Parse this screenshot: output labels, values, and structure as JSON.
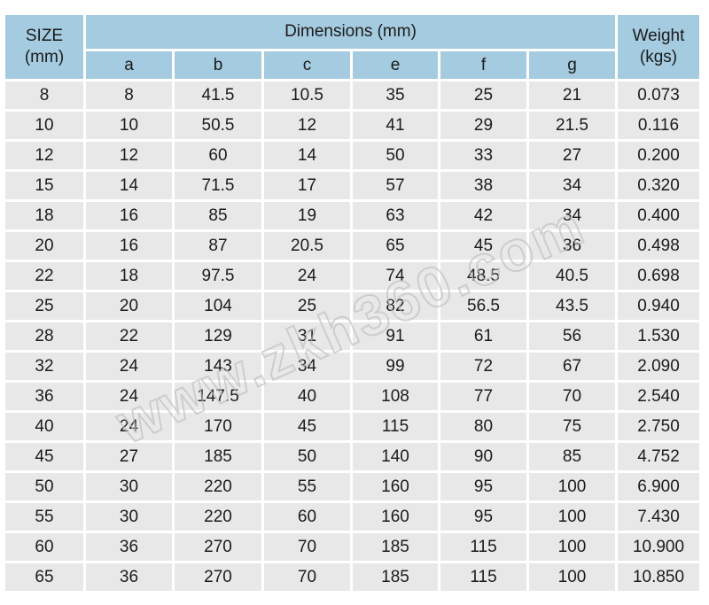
{
  "colors": {
    "header_bg": "#a4cbdf",
    "row_bg": "#e8e8e8",
    "text": "#1b1b1b",
    "watermark_stroke": "#bfbfbf",
    "gap": "#ffffff"
  },
  "watermark": {
    "text": "www.zkh360.com"
  },
  "table": {
    "header": {
      "size_line1": "SIZE",
      "size_line2": "(mm)",
      "dimensions_label": "Dimensions (mm)",
      "weight_line1": "Weight",
      "weight_line2": "(kgs)",
      "sub_columns": [
        "a",
        "b",
        "c",
        "e",
        "f",
        "g"
      ]
    },
    "rows": [
      [
        "8",
        "8",
        "41.5",
        "10.5",
        "35",
        "25",
        "21",
        "0.073"
      ],
      [
        "10",
        "10",
        "50.5",
        "12",
        "41",
        "29",
        "21.5",
        "0.116"
      ],
      [
        "12",
        "12",
        "60",
        "14",
        "50",
        "33",
        "27",
        "0.200"
      ],
      [
        "15",
        "14",
        "71.5",
        "17",
        "57",
        "38",
        "34",
        "0.320"
      ],
      [
        "18",
        "16",
        "85",
        "19",
        "63",
        "42",
        "34",
        "0.400"
      ],
      [
        "20",
        "16",
        "87",
        "20.5",
        "65",
        "45",
        "36",
        "0.498"
      ],
      [
        "22",
        "18",
        "97.5",
        "24",
        "74",
        "48.5",
        "40.5",
        "0.698"
      ],
      [
        "25",
        "20",
        "104",
        "25",
        "82",
        "56.5",
        "43.5",
        "0.940"
      ],
      [
        "28",
        "22",
        "129",
        "31",
        "91",
        "61",
        "56",
        "1.530"
      ],
      [
        "32",
        "24",
        "143",
        "34",
        "99",
        "72",
        "67",
        "2.090"
      ],
      [
        "36",
        "24",
        "147.5",
        "40",
        "108",
        "77",
        "70",
        "2.540"
      ],
      [
        "40",
        "24",
        "170",
        "45",
        "115",
        "80",
        "75",
        "2.750"
      ],
      [
        "45",
        "27",
        "185",
        "50",
        "140",
        "90",
        "85",
        "4.752"
      ],
      [
        "50",
        "30",
        "220",
        "55",
        "160",
        "95",
        "100",
        "6.900"
      ],
      [
        "55",
        "30",
        "220",
        "60",
        "160",
        "95",
        "100",
        "7.430"
      ],
      [
        "60",
        "36",
        "270",
        "70",
        "185",
        "115",
        "100",
        "10.900"
      ],
      [
        "65",
        "36",
        "270",
        "70",
        "185",
        "115",
        "100",
        "10.850"
      ]
    ]
  }
}
